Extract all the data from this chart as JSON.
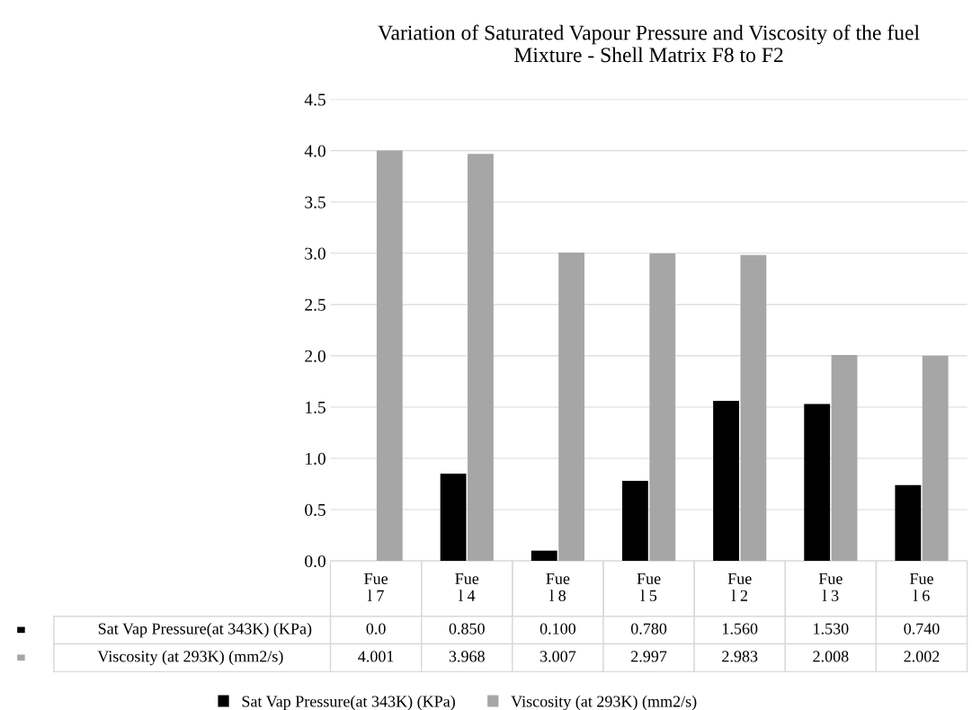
{
  "chart_data": {
    "type": "bar",
    "title": "Variation of Saturated Vapour Pressure and Viscosity of the fuel\nMixture - Shell Matrix F8 to F2",
    "categories": [
      "Fue\nl 7",
      "Fue\nl 4",
      "Fue\nl 8",
      "Fue\nl 5",
      "Fue\nl 2",
      "Fue\nl 3",
      "Fue\nl 6"
    ],
    "series": [
      {
        "name": "Sat Vap Pressure(at 343K) (KPa)",
        "color": "#000000",
        "values": [
          0.0,
          0.85,
          0.1,
          0.78,
          1.56,
          1.53,
          0.74
        ],
        "value_labels": [
          "0.0",
          "0.850",
          "0.100",
          "0.780",
          "1.560",
          "1.530",
          "0.740"
        ]
      },
      {
        "name": "Viscosity (at 293K) (mm2/s)",
        "color": "#a6a6a6",
        "values": [
          4.001,
          3.968,
          3.007,
          2.997,
          2.983,
          2.008,
          2.002
        ],
        "value_labels": [
          "4.001",
          "3.968",
          "3.007",
          "2.997",
          "2.983",
          "2.008",
          "2.002"
        ]
      }
    ],
    "ylim": [
      0,
      4.5
    ],
    "yticks": [
      {
        "value": 0,
        "label": "0.0"
      },
      {
        "value": 0.5,
        "label": "0.5"
      },
      {
        "value": 1,
        "label": "1.0"
      },
      {
        "value": 1.5,
        "label": "1.5"
      },
      {
        "value": 2,
        "label": "2.0"
      },
      {
        "value": 2.5,
        "label": "2.5"
      },
      {
        "value": 3,
        "label": "3.0"
      },
      {
        "value": 3.5,
        "label": "3.5"
      },
      {
        "value": 4,
        "label": "4.0"
      },
      {
        "value": 4.5,
        "label": "4.5"
      }
    ],
    "grid": "y",
    "legend": "bottom"
  }
}
